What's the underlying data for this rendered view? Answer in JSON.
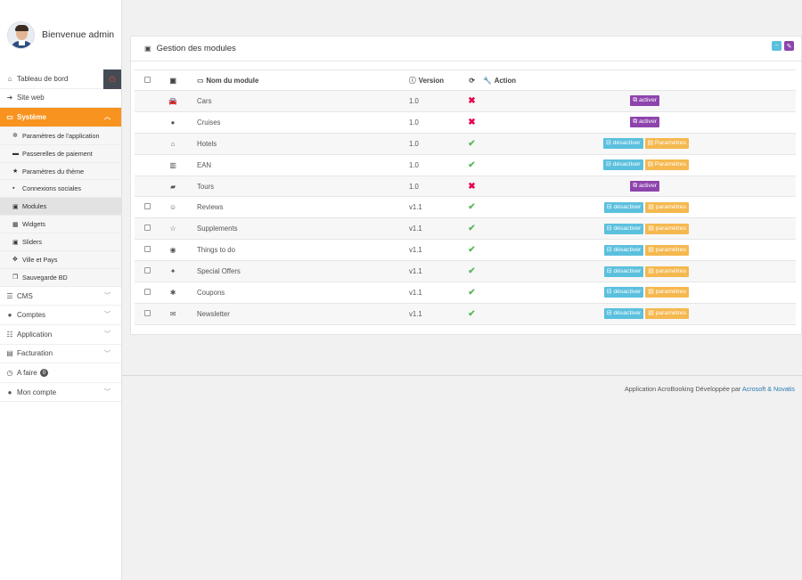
{
  "sidebar": {
    "welcome": "Bienvenue admin",
    "items": [
      {
        "icon": "home-icon",
        "glyph": "⌂",
        "label": "Tableau de bord"
      },
      {
        "icon": "sign-in-icon",
        "glyph": "➜",
        "label": "Site web"
      },
      {
        "icon": "laptop-icon",
        "glyph": "▭",
        "label": "Système",
        "active": true
      },
      {
        "icon": "bars-icon",
        "glyph": "☰",
        "label": "CMS"
      },
      {
        "icon": "user-icon",
        "glyph": "●",
        "label": "Comptes"
      },
      {
        "icon": "list-icon",
        "glyph": "☷",
        "label": "Application"
      },
      {
        "icon": "file-icon",
        "glyph": "▤",
        "label": "Facturation"
      },
      {
        "icon": "clock-icon",
        "glyph": "◷",
        "label": "A faire",
        "badge": "0"
      },
      {
        "icon": "user-icon",
        "glyph": "●",
        "label": "Mon compte"
      }
    ],
    "subitems": [
      {
        "icon": "gear-icon",
        "glyph": "✲",
        "label": "Paramètres de l'application"
      },
      {
        "icon": "credit-card-icon",
        "glyph": "▬",
        "label": "Passerelles de paiement"
      },
      {
        "icon": "star-icon",
        "glyph": "★",
        "label": "Paramètres du thème"
      },
      {
        "icon": "share-icon",
        "glyph": "▪",
        "label": "Connexions sociales"
      },
      {
        "icon": "image-icon",
        "glyph": "▣",
        "label": "Modules",
        "current": true
      },
      {
        "icon": "th-icon",
        "glyph": "▦",
        "label": "Widgets"
      },
      {
        "icon": "picture-icon",
        "glyph": "▣",
        "label": "Sliders"
      },
      {
        "icon": "arrows-icon",
        "glyph": "✥",
        "label": "Ville et Pays"
      },
      {
        "icon": "copy-icon",
        "glyph": "❐",
        "label": "Sauvegarde BD"
      }
    ]
  },
  "panel": {
    "title": "Gestion des modules",
    "columns": {
      "name": "Nom du module",
      "version": "Version",
      "action": "Action"
    }
  },
  "modules": [
    {
      "icon": "car-icon",
      "glyph": "🚘",
      "name": "Cars",
      "version": "1.0",
      "enabled": false,
      "checkbox": false
    },
    {
      "icon": "globe-icon",
      "glyph": "●",
      "name": "Cruises",
      "version": "1.0",
      "enabled": false,
      "checkbox": false
    },
    {
      "icon": "home-icon",
      "glyph": "⌂",
      "name": "Hotels",
      "version": "1.0",
      "enabled": true,
      "checkbox": false
    },
    {
      "icon": "building-icon",
      "glyph": "▥",
      "name": "EAN",
      "version": "1.0",
      "enabled": true,
      "checkbox": false
    },
    {
      "icon": "suitcase-icon",
      "glyph": "▰",
      "name": "Tours",
      "version": "1.0",
      "enabled": false,
      "checkbox": false
    },
    {
      "icon": "smile-icon",
      "glyph": "☺",
      "name": "Reviews",
      "version": "v1.1",
      "enabled": true,
      "checkbox": true
    },
    {
      "icon": "star-half-icon",
      "glyph": "☆",
      "name": "Supplements",
      "version": "v1.1",
      "enabled": true,
      "checkbox": true
    },
    {
      "icon": "target-icon",
      "glyph": "◉",
      "name": "Things to do",
      "version": "v1.1",
      "enabled": true,
      "checkbox": true
    },
    {
      "icon": "gift-icon",
      "glyph": "✦",
      "name": "Special Offers",
      "version": "v1.1",
      "enabled": true,
      "checkbox": true
    },
    {
      "icon": "asterisk-icon",
      "glyph": "✱",
      "name": "Coupons",
      "version": "v1.1",
      "enabled": true,
      "checkbox": true
    },
    {
      "icon": "envelope-icon",
      "glyph": "✉",
      "name": "Newsletter",
      "version": "v1.1",
      "enabled": true,
      "checkbox": true
    }
  ],
  "actions": {
    "activate": "activer",
    "deactivate": "désactiver",
    "params_cap": "Paramètres",
    "params_low": "paramètres"
  },
  "footer": {
    "text": "Application AcroBooking Développée par",
    "link1": "Acrosoft",
    "amp": "&",
    "link2": "Novatis"
  },
  "colors": {
    "accent": "#f8931f",
    "activate": "#8e44ad",
    "deactivate": "#5bc0de",
    "params": "#f5b84f",
    "ok": "#5cb85c",
    "no": "#e8004b"
  }
}
